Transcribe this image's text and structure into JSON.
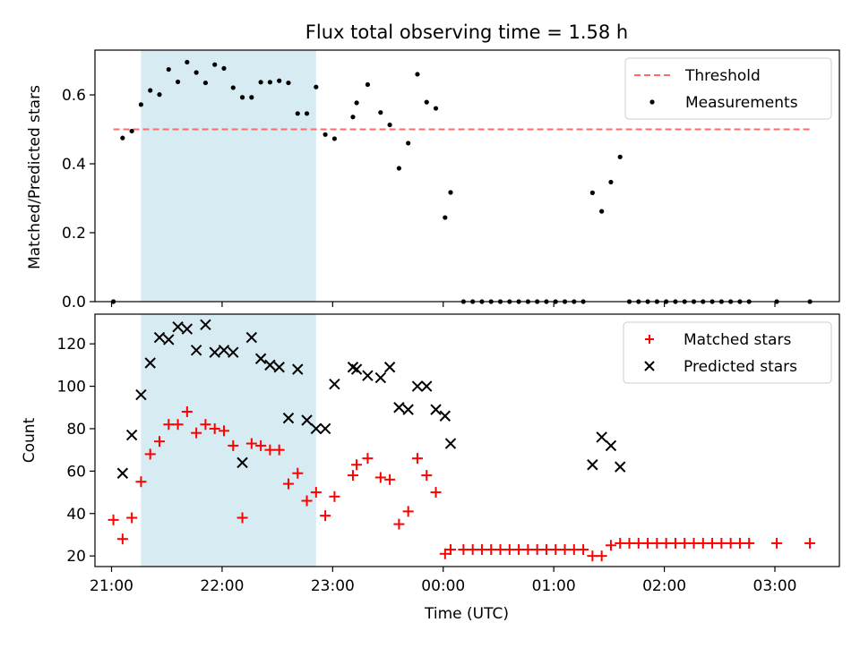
{
  "chart_data": [
    {
      "type": "scatter",
      "title": "Flux total observing time = 1.58 h",
      "xlabel": "",
      "ylabel": "Matched/Predicted stars",
      "ylim": [
        0,
        0.73
      ],
      "xlim": [
        "20:51",
        "03:35"
      ],
      "yticks": [
        0.0,
        0.2,
        0.4,
        0.6
      ],
      "ytick_labels": [
        "0.0",
        "0.2",
        "0.4",
        "0.6"
      ],
      "grid": false,
      "legend_position": "top-right",
      "shaded_region": {
        "x_start": "21:16",
        "x_end": "22:51",
        "color": "#add8e6"
      },
      "threshold": {
        "name": "Threshold",
        "value": 0.5,
        "x_start": "21:01",
        "x_end": "03:19",
        "color": "#ff6b6b",
        "style": "dashed"
      },
      "series": [
        {
          "name": "Measurements",
          "color": "#000000",
          "marker": "dot",
          "x": [
            "21:01",
            "21:06",
            "21:11",
            "21:16",
            "21:21",
            "21:26",
            "21:31",
            "21:36",
            "21:41",
            "21:46",
            "21:51",
            "21:56",
            "22:01",
            "22:06",
            "22:11",
            "22:16",
            "22:21",
            "22:26",
            "22:31",
            "22:36",
            "22:41",
            "22:46",
            "22:51",
            "22:56",
            "23:01",
            "23:11",
            "23:13",
            "23:19",
            "23:26",
            "23:31",
            "23:36",
            "23:41",
            "23:46",
            "23:51",
            "23:56",
            "00:01",
            "00:04",
            "00:11",
            "00:16",
            "00:21",
            "00:26",
            "00:31",
            "00:36",
            "00:41",
            "00:46",
            "00:51",
            "00:56",
            "01:01",
            "01:06",
            "01:11",
            "01:16",
            "01:21",
            "01:26",
            "01:31",
            "01:36",
            "01:41",
            "01:46",
            "01:51",
            "01:56",
            "02:01",
            "02:06",
            "02:11",
            "02:16",
            "02:21",
            "02:26",
            "02:31",
            "02:36",
            "02:41",
            "02:46",
            "03:01",
            "03:19"
          ],
          "y": [
            0.0,
            0.475,
            0.495,
            0.572,
            0.613,
            0.601,
            0.674,
            0.638,
            0.695,
            0.665,
            0.635,
            0.688,
            0.677,
            0.621,
            0.593,
            0.593,
            0.637,
            0.637,
            0.641,
            0.635,
            0.546,
            0.546,
            0.623,
            0.485,
            0.473,
            0.536,
            0.577,
            0.63,
            0.549,
            0.513,
            0.387,
            0.46,
            0.66,
            0.579,
            0.561,
            0.244,
            0.317,
            0.0,
            0.0,
            0.0,
            0.0,
            0.0,
            0.0,
            0.0,
            0.0,
            0.0,
            0.0,
            0.0,
            0.0,
            0.0,
            0.0,
            0.316,
            0.262,
            0.347,
            0.42,
            0.0,
            0.0,
            0.0,
            0.0,
            0.0,
            0.0,
            0.0,
            0.0,
            0.0,
            0.0,
            0.0,
            0.0,
            0.0,
            0.0,
            0.0,
            0.0
          ]
        }
      ]
    },
    {
      "type": "scatter",
      "title": "",
      "xlabel": "Time (UTC)",
      "ylabel": "Count",
      "ylim": [
        15,
        134
      ],
      "xlim": [
        "20:51",
        "03:35"
      ],
      "yticks": [
        20,
        40,
        60,
        80,
        100,
        120
      ],
      "ytick_labels": [
        "20",
        "40",
        "60",
        "80",
        "100",
        "120"
      ],
      "xticks": [
        "21:00",
        "22:00",
        "23:00",
        "00:00",
        "01:00",
        "02:00",
        "03:00"
      ],
      "grid": false,
      "legend_position": "top-right",
      "shaded_region": {
        "x_start": "21:16",
        "x_end": "22:51",
        "color": "#add8e6"
      },
      "series": [
        {
          "name": "Matched stars",
          "color": "#ff0000",
          "marker": "plus",
          "x": [
            "21:01",
            "21:06",
            "21:11",
            "21:16",
            "21:21",
            "21:26",
            "21:31",
            "21:36",
            "21:41",
            "21:46",
            "21:51",
            "21:56",
            "22:01",
            "22:06",
            "22:11",
            "22:16",
            "22:21",
            "22:26",
            "22:31",
            "22:36",
            "22:41",
            "22:46",
            "22:51",
            "22:56",
            "23:01",
            "23:11",
            "23:13",
            "23:19",
            "23:26",
            "23:31",
            "23:36",
            "23:41",
            "23:46",
            "23:51",
            "23:56",
            "00:01",
            "00:04",
            "00:11",
            "00:16",
            "00:21",
            "00:26",
            "00:31",
            "00:36",
            "00:41",
            "00:46",
            "00:51",
            "00:56",
            "01:01",
            "01:06",
            "01:11",
            "01:16",
            "01:21",
            "01:26",
            "01:31",
            "01:36",
            "01:41",
            "01:46",
            "01:51",
            "01:56",
            "02:01",
            "02:06",
            "02:11",
            "02:16",
            "02:21",
            "02:26",
            "02:31",
            "02:36",
            "02:41",
            "02:46",
            "03:01",
            "03:19"
          ],
          "y": [
            37,
            28,
            38,
            55,
            68,
            74,
            82,
            82,
            88,
            78,
            82,
            80,
            79,
            72,
            38,
            73,
            72,
            70,
            70,
            54,
            59,
            46,
            50,
            39,
            48,
            58,
            63,
            66,
            57,
            56,
            35,
            41,
            66,
            58,
            50,
            21,
            23,
            23,
            23,
            23,
            23,
            23,
            23,
            23,
            23,
            23,
            23,
            23,
            23,
            23,
            23,
            20,
            20,
            25,
            26,
            26,
            26,
            26,
            26,
            26,
            26,
            26,
            26,
            26,
            26,
            26,
            26,
            26,
            26,
            26,
            26
          ]
        },
        {
          "name": "Predicted stars",
          "color": "#000000",
          "marker": "x",
          "x": [
            "21:06",
            "21:11",
            "21:16",
            "21:21",
            "21:26",
            "21:31",
            "21:36",
            "21:41",
            "21:46",
            "21:51",
            "21:56",
            "22:01",
            "22:06",
            "22:11",
            "22:16",
            "22:21",
            "22:26",
            "22:31",
            "22:36",
            "22:41",
            "22:46",
            "22:51",
            "22:56",
            "23:01",
            "23:11",
            "23:13",
            "23:19",
            "23:26",
            "23:31",
            "23:36",
            "23:41",
            "23:46",
            "23:51",
            "23:56",
            "00:01",
            "00:04",
            "01:21",
            "01:26",
            "01:31",
            "01:36"
          ],
          "y": [
            59,
            77,
            96,
            111,
            123,
            122,
            128,
            127,
            117,
            129,
            116,
            117,
            116,
            64,
            123,
            113,
            110,
            109,
            85,
            108,
            84,
            80,
            80,
            101,
            109,
            108,
            105,
            104,
            109,
            90,
            89,
            100,
            100,
            89,
            86,
            73,
            63,
            76,
            72,
            62
          ]
        }
      ]
    }
  ]
}
